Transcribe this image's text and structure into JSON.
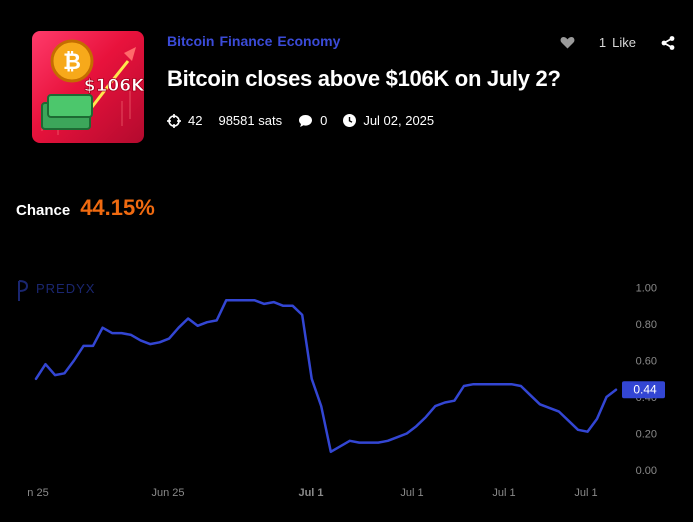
{
  "market": {
    "tags": [
      "Bitcoin",
      "Finance",
      "Economy"
    ],
    "title": "Bitcoin closes above $106K on July 2?",
    "thumbnail_text": "$106K",
    "trades": "42",
    "volume": "98581 sats",
    "comments": "0",
    "date": "Jul 02, 2025"
  },
  "social": {
    "like_count": "1",
    "like_label": "Like"
  },
  "chance": {
    "label": "Chance",
    "value": "44.15%"
  },
  "watermark": "PREDYX",
  "icons": {
    "trades": "crosshair-icon",
    "comments": "comment-bubble-icon",
    "date": "clock-icon",
    "like": "heart-icon",
    "share": "share-icon"
  },
  "colors": {
    "background": "#000000",
    "tag": "#3b4bd8",
    "chance": "#f06a10",
    "line": "#3346d3",
    "current_badge": "#3346d3"
  },
  "chart_data": {
    "type": "line",
    "y_ticks": [
      "1.00",
      "0.80",
      "0.60",
      "0.40",
      "0.20",
      "0.00"
    ],
    "ylim": [
      0,
      1
    ],
    "x_ticks": [
      "n 25",
      "Jun 25",
      "Jul 1",
      "Jul 1",
      "Jul 1",
      "Jul 1"
    ],
    "current_value": "0.44",
    "series": [
      {
        "values": [
          0.5,
          0.58,
          0.52,
          0.53,
          0.6,
          0.68,
          0.68,
          0.78,
          0.75,
          0.75,
          0.74,
          0.71,
          0.69,
          0.7,
          0.72,
          0.78,
          0.83,
          0.79,
          0.81,
          0.82,
          0.93,
          0.93,
          0.93,
          0.93,
          0.91,
          0.92,
          0.9,
          0.9,
          0.85,
          0.5,
          0.35,
          0.1,
          0.13,
          0.16,
          0.15,
          0.15,
          0.15,
          0.16,
          0.18,
          0.2,
          0.24,
          0.29,
          0.35,
          0.37,
          0.38,
          0.46,
          0.47,
          0.47,
          0.47,
          0.47,
          0.47,
          0.46,
          0.41,
          0.36,
          0.34,
          0.32,
          0.27,
          0.22,
          0.21,
          0.28,
          0.4,
          0.44
        ]
      }
    ]
  }
}
